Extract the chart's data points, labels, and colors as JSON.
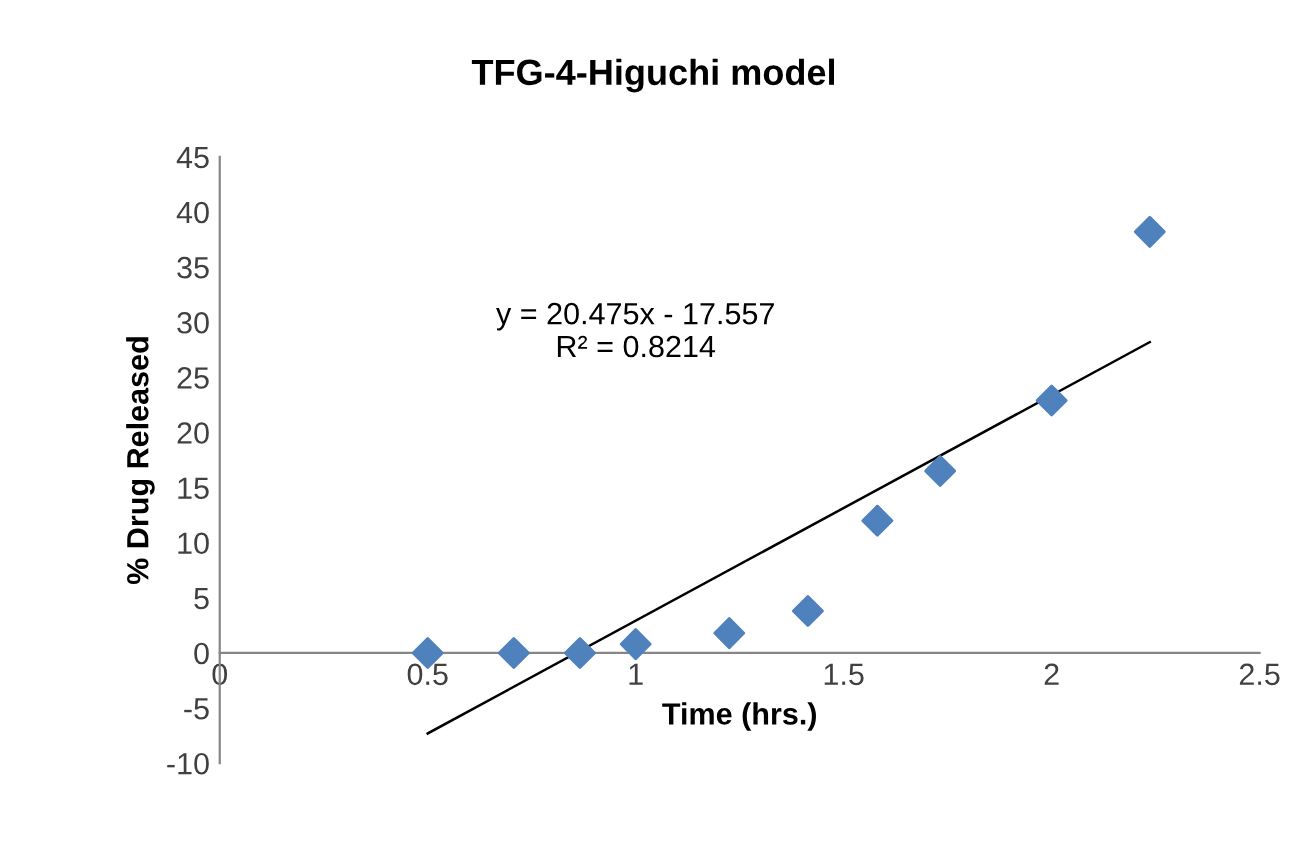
{
  "chart_data": {
    "type": "scatter",
    "title": "TFG-4-Higuchi model",
    "xlabel": "Time (hrs.)",
    "ylabel": "% Drug Released",
    "x": [
      0.5,
      0.707,
      0.866,
      1.0,
      1.225,
      1.414,
      1.581,
      1.732,
      2.0,
      2.236
    ],
    "series": [
      {
        "color": "#4f81bd",
        "marker": "diamond",
        "values": [
          0,
          0,
          0,
          0.8,
          1.8,
          3.8,
          12,
          16.5,
          22.9,
          38.2
        ]
      },
      {
        "type": "line",
        "color": "#000000",
        "marker": "none",
        "line_style": "solid",
        "x": [
          0.5,
          2.236
        ],
        "values": [
          -7.3,
          28.2
        ]
      }
    ],
    "xlim": [
      0,
      2.5
    ],
    "xticks": [
      0,
      0.5,
      1,
      1.5,
      2,
      2.5
    ],
    "ylim": [
      -10,
      45
    ],
    "yticks": [
      -10,
      -5,
      0,
      5,
      10,
      15,
      20,
      25,
      30,
      35,
      40,
      45
    ],
    "grid": false,
    "legend": false,
    "annotations": [
      "y = 20.475x - 17.557\nR² = 0.8214"
    ]
  }
}
